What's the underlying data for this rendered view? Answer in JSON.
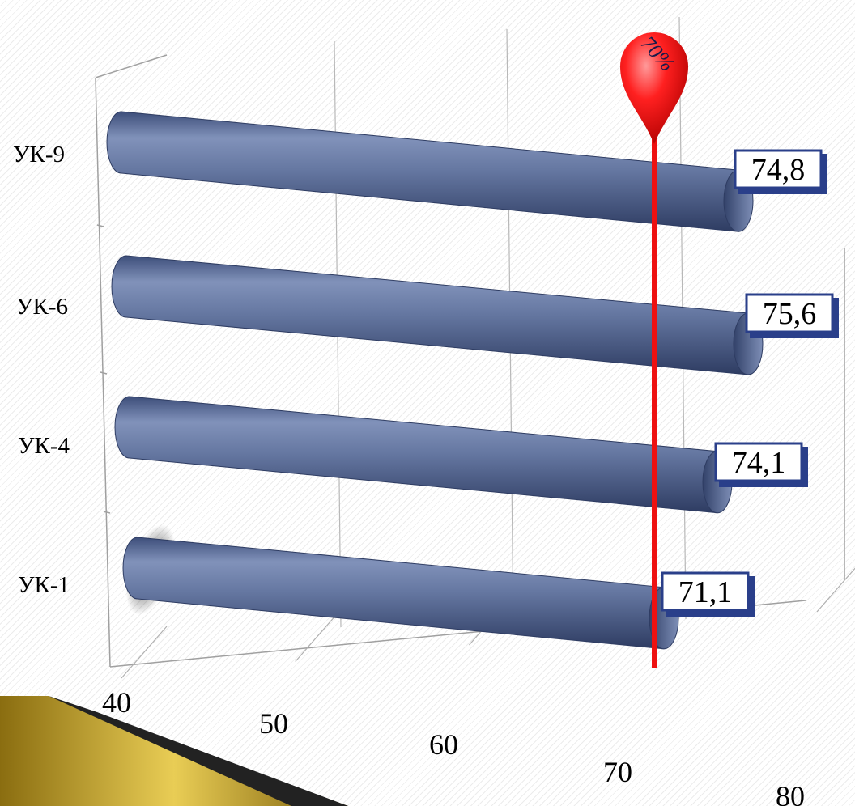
{
  "chart_data": {
    "type": "bar",
    "orientation": "horizontal",
    "categories": [
      "УК-1",
      "УК-4",
      "УК-6",
      "УК-9"
    ],
    "values": [
      71.1,
      74.1,
      75.6,
      74.8
    ],
    "value_labels": [
      "71,1",
      "74,1",
      "75,6",
      "74,8"
    ],
    "x_ticks": [
      "40",
      "50",
      "60",
      "70",
      "80"
    ],
    "xlim": [
      40,
      80
    ],
    "reference_line": {
      "value": 70,
      "label": "70%",
      "color": "#ee1111"
    },
    "bar_color": "#5c6f99",
    "grid": true
  }
}
